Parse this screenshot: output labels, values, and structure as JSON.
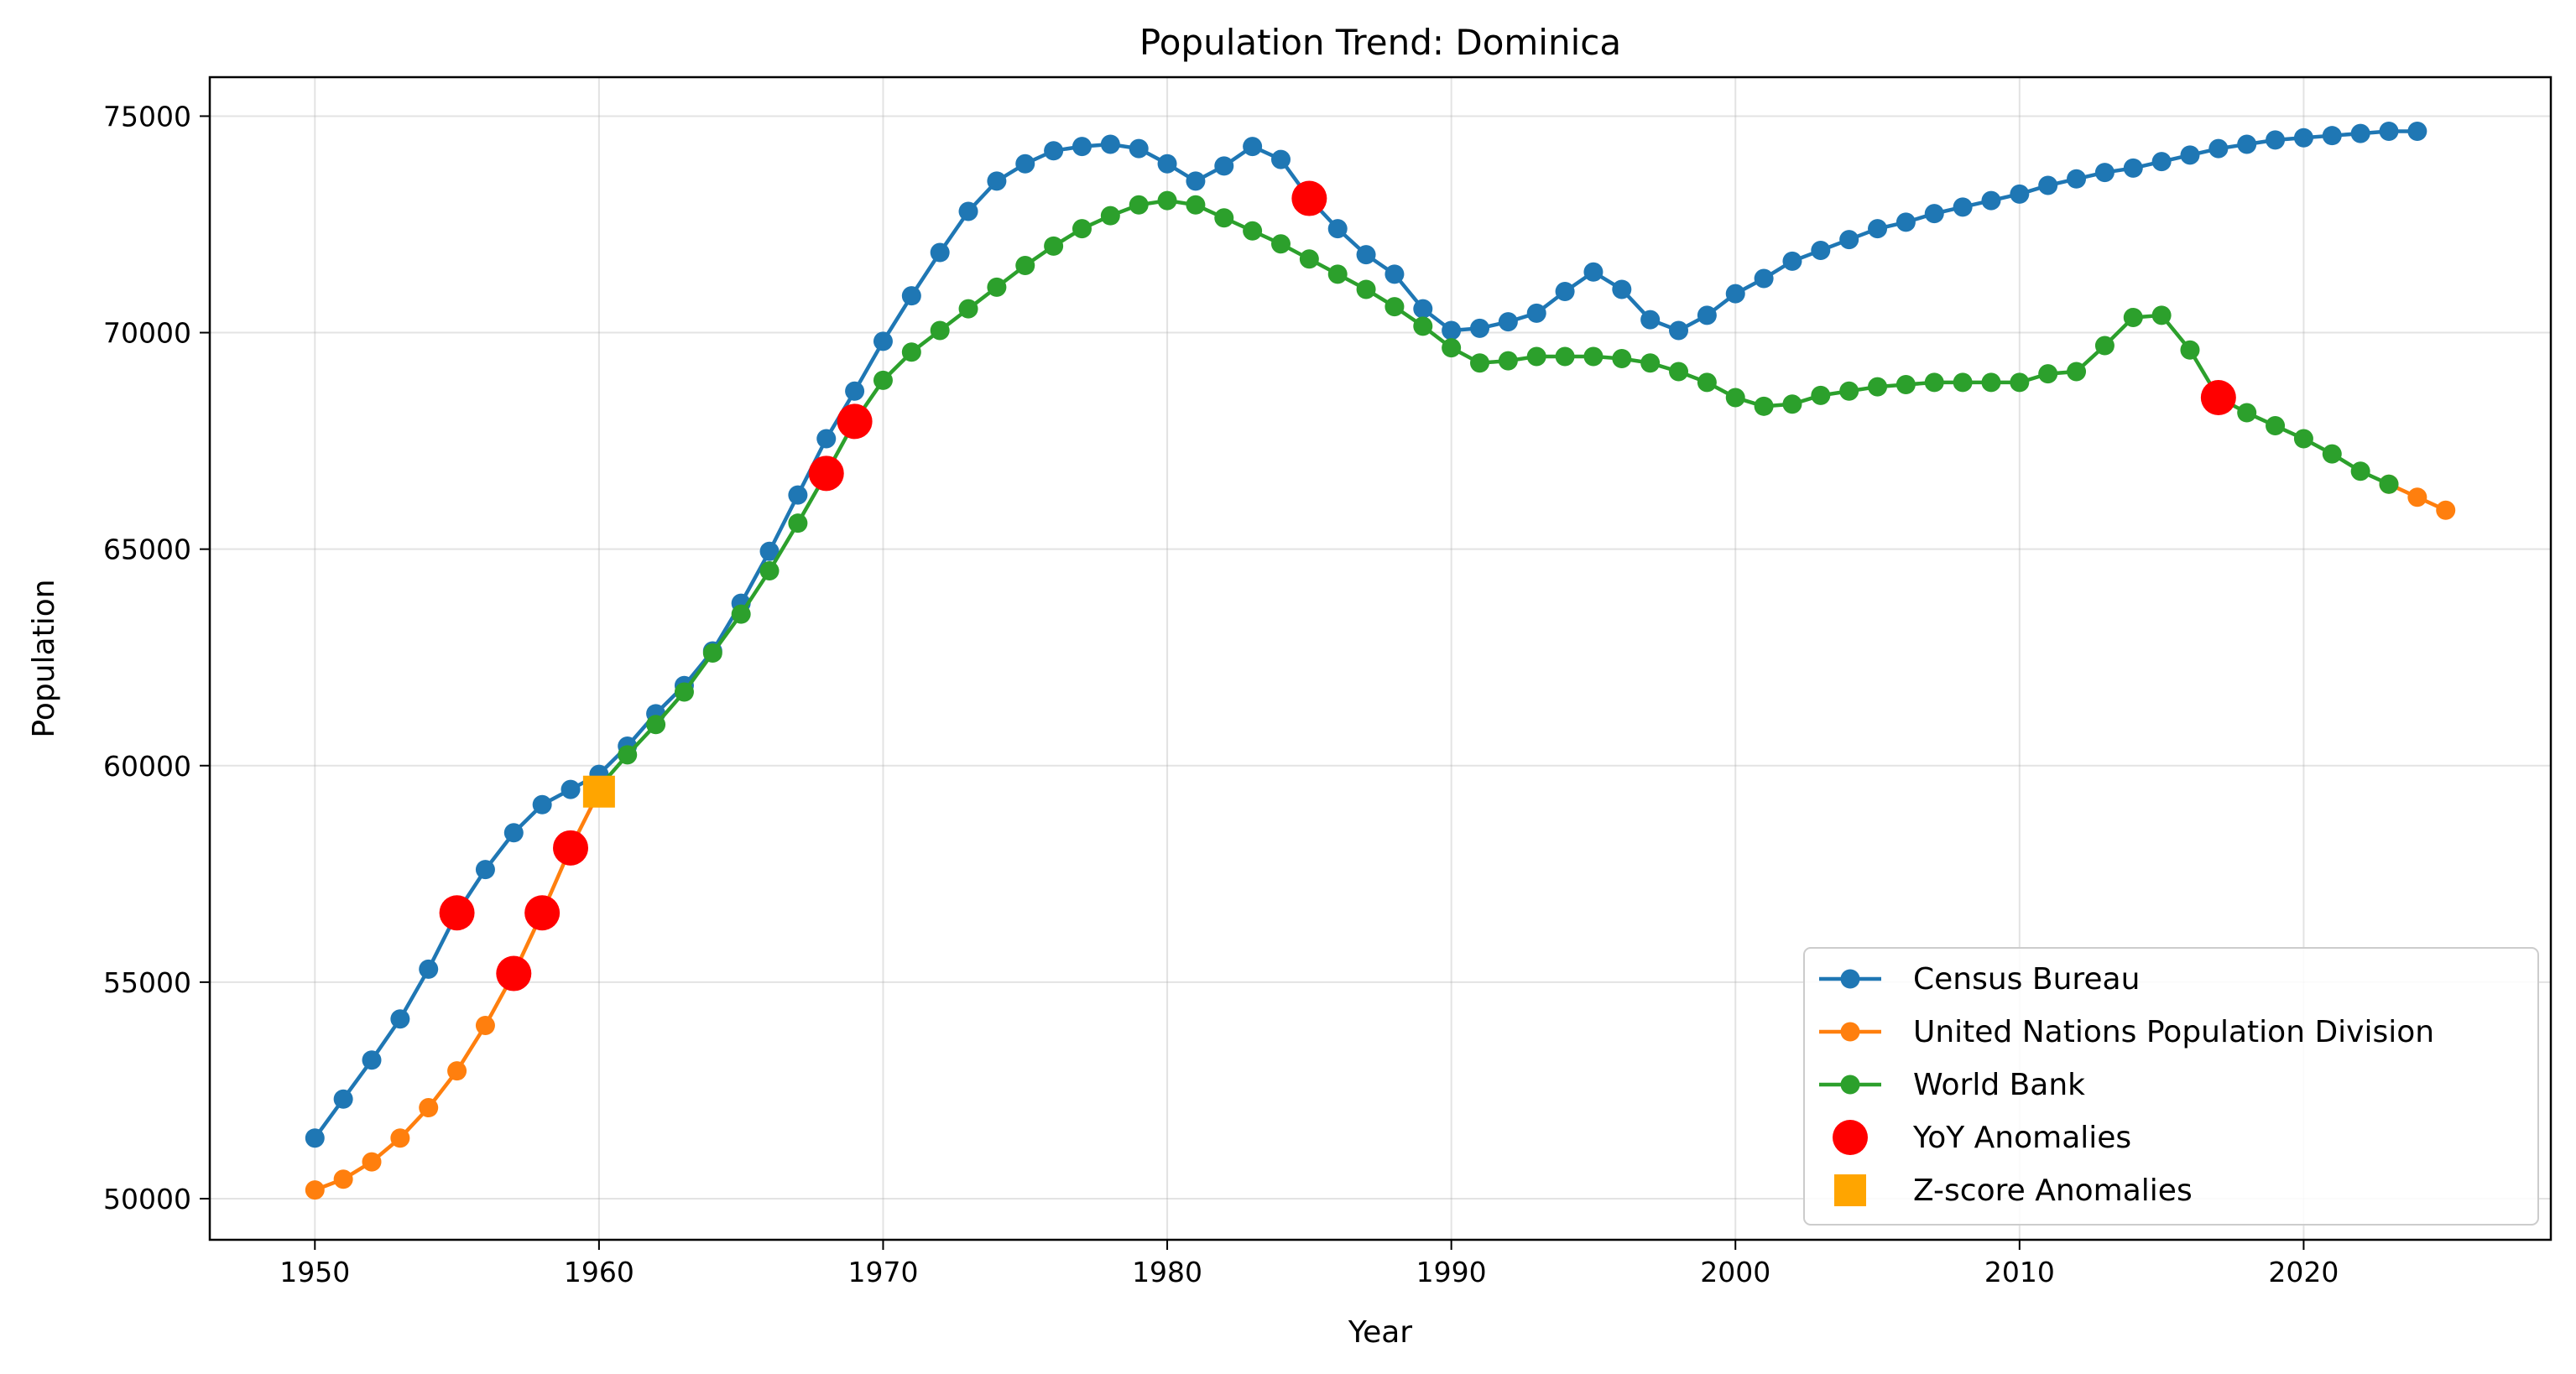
{
  "chart_data": {
    "type": "line",
    "title": "Population Trend: Dominica",
    "xlabel": "Year",
    "ylabel": "Population",
    "xlim": [
      1946.3,
      2028.7
    ],
    "ylim": [
      49050,
      75900
    ],
    "xticks": [
      1950,
      1960,
      1970,
      1980,
      1990,
      2000,
      2010,
      2020
    ],
    "yticks": [
      50000,
      55000,
      60000,
      65000,
      70000,
      75000
    ],
    "grid": true,
    "legend_position": "lower-right",
    "series": [
      {
        "name": "Census Bureau",
        "color": "#1f77b4",
        "x": [
          1950,
          1951,
          1952,
          1953,
          1954,
          1955,
          1956,
          1957,
          1958,
          1959,
          1960,
          1961,
          1962,
          1963,
          1964,
          1965,
          1966,
          1967,
          1968,
          1969,
          1970,
          1971,
          1972,
          1973,
          1974,
          1975,
          1976,
          1977,
          1978,
          1979,
          1980,
          1981,
          1982,
          1983,
          1984,
          1985,
          1986,
          1987,
          1988,
          1989,
          1990,
          1991,
          1992,
          1993,
          1994,
          1995,
          1996,
          1997,
          1998,
          1999,
          2000,
          2001,
          2002,
          2003,
          2004,
          2005,
          2006,
          2007,
          2008,
          2009,
          2010,
          2011,
          2012,
          2013,
          2014,
          2015,
          2016,
          2017,
          2018,
          2019,
          2020,
          2021,
          2022,
          2023,
          2024
        ],
        "y": [
          51400,
          52300,
          53200,
          54150,
          55300,
          56600,
          57600,
          58450,
          59100,
          59450,
          59800,
          60450,
          61200,
          61850,
          62650,
          63750,
          64950,
          66250,
          67550,
          68650,
          69800,
          70850,
          71850,
          72800,
          73500,
          73900,
          74200,
          74300,
          74350,
          74250,
          73900,
          73500,
          73850,
          74300,
          74000,
          73100,
          72400,
          71800,
          71350,
          70550,
          70050,
          70100,
          70250,
          70450,
          70950,
          71400,
          71000,
          70300,
          70050,
          70400,
          70900,
          71250,
          71650,
          71900,
          72150,
          72400,
          72550,
          72750,
          72900,
          73050,
          73200,
          73400,
          73550,
          73700,
          73800,
          73950,
          74100,
          74250,
          74350,
          74450,
          74500,
          74550,
          74600,
          74650,
          74650
        ]
      },
      {
        "name": "United Nations Population Division",
        "color": "#ff7f0e",
        "x": [
          1950,
          1951,
          1952,
          1953,
          1954,
          1955,
          1956,
          1957,
          1958,
          1959,
          1960,
          2023,
          2024,
          2025
        ],
        "y": [
          50200,
          50450,
          50850,
          51400,
          52100,
          52950,
          54000,
          55200,
          56600,
          58100,
          59400,
          66500,
          66200,
          65900
        ]
      },
      {
        "name": "World Bank",
        "color": "#2ca02c",
        "x": [
          1960,
          1961,
          1962,
          1963,
          1964,
          1965,
          1966,
          1967,
          1968,
          1969,
          1970,
          1971,
          1972,
          1973,
          1974,
          1975,
          1976,
          1977,
          1978,
          1979,
          1980,
          1981,
          1982,
          1983,
          1984,
          1985,
          1986,
          1987,
          1988,
          1989,
          1990,
          1991,
          1992,
          1993,
          1994,
          1995,
          1996,
          1997,
          1998,
          1999,
          2000,
          2001,
          2002,
          2003,
          2004,
          2005,
          2006,
          2007,
          2008,
          2009,
          2010,
          2011,
          2012,
          2013,
          2014,
          2015,
          2016,
          2017,
          2018,
          2019,
          2020,
          2021,
          2022,
          2023
        ],
        "y": [
          59500,
          60250,
          60950,
          61700,
          62600,
          63500,
          64500,
          65600,
          66750,
          67950,
          68900,
          69550,
          70050,
          70550,
          71050,
          71550,
          72000,
          72400,
          72700,
          72950,
          73050,
          72950,
          72650,
          72350,
          72050,
          71700,
          71350,
          71000,
          70600,
          70150,
          69650,
          69300,
          69350,
          69450,
          69450,
          69450,
          69400,
          69300,
          69100,
          68850,
          68500,
          68300,
          68350,
          68550,
          68650,
          68750,
          68800,
          68850,
          68850,
          68850,
          68850,
          69050,
          69100,
          69700,
          70350,
          70400,
          69600,
          68500,
          68150,
          67850,
          67550,
          67200,
          66800,
          66500
        ]
      }
    ],
    "anomalies": [
      {
        "name": "YoY Anomalies",
        "color": "#ff0000",
        "marker": "circle",
        "points": [
          {
            "x": 1955,
            "y": 56600
          },
          {
            "x": 1957,
            "y": 55200
          },
          {
            "x": 1958,
            "y": 56600
          },
          {
            "x": 1959,
            "y": 58100
          },
          {
            "x": 1968,
            "y": 66750
          },
          {
            "x": 1969,
            "y": 67950
          },
          {
            "x": 1985,
            "y": 73100
          },
          {
            "x": 2017,
            "y": 68500
          }
        ]
      },
      {
        "name": "Z-score Anomalies",
        "color": "#ffa500",
        "marker": "square",
        "points": [
          {
            "x": 1960,
            "y": 59400
          }
        ]
      }
    ]
  }
}
